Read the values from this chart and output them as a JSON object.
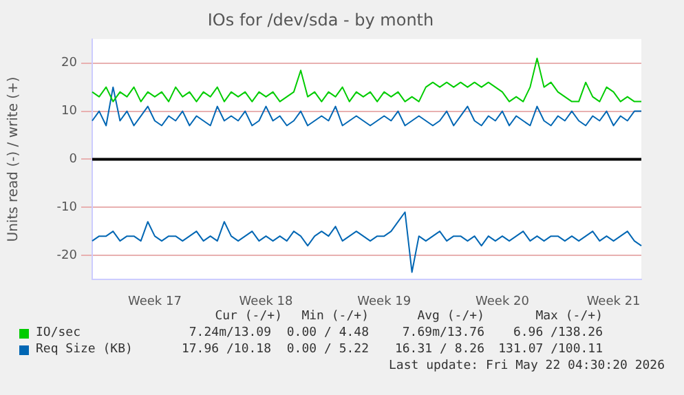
{
  "chart_data": {
    "type": "line",
    "title": "IOs for /dev/sda - by month",
    "ylabel": "Units read (-) / write (+)",
    "categories": [
      null,
      null,
      null,
      null,
      null,
      null,
      null,
      null,
      null,
      "Week 17",
      null,
      null,
      null,
      null,
      null,
      null,
      null,
      null,
      null,
      null,
      null,
      null,
      null,
      null,
      null,
      "Week 18",
      null,
      null,
      null,
      null,
      null,
      null,
      null,
      null,
      null,
      null,
      null,
      null,
      null,
      null,
      null,
      null,
      "Week 19",
      null,
      null,
      null,
      null,
      null,
      null,
      null,
      null,
      null,
      null,
      null,
      null,
      null,
      null,
      null,
      null,
      "Week 20",
      null,
      null,
      null,
      null,
      null,
      null,
      null,
      null,
      null,
      null,
      null,
      null,
      null,
      null,
      null,
      "Week 21",
      null,
      null,
      null,
      null
    ],
    "series": [
      {
        "name": "IO/sec",
        "color": "#00cc00",
        "values": [
          14,
          13,
          15,
          12,
          14,
          13,
          15,
          12,
          14,
          13,
          14,
          12,
          15,
          13,
          14,
          12,
          14,
          13,
          15,
          12,
          14,
          13,
          14,
          12,
          14,
          13,
          14,
          12,
          13,
          14,
          18.5,
          13,
          14,
          12,
          14,
          13,
          15,
          12,
          14,
          13,
          14,
          12,
          14,
          13,
          14,
          12,
          13,
          12,
          15,
          16,
          15,
          16,
          15,
          16,
          15,
          16,
          15,
          16,
          15,
          14,
          12,
          13,
          12,
          15,
          21,
          15,
          16,
          14,
          13,
          12,
          12,
          16,
          13,
          12,
          15,
          14,
          12,
          13,
          12,
          12
        ]
      },
      {
        "name": "Req Size (KB)",
        "color": "#0066b3",
        "values": [
          8,
          10,
          7,
          15,
          8,
          10,
          7,
          9,
          11,
          8,
          7,
          9,
          8,
          10,
          7,
          9,
          8,
          7,
          11,
          8,
          9,
          8,
          10,
          7,
          8,
          11,
          8,
          9,
          7,
          8,
          10,
          7,
          8,
          9,
          8,
          11,
          7,
          8,
          9,
          8,
          7,
          8,
          9,
          8,
          10,
          7,
          8,
          9,
          8,
          7,
          8,
          10,
          7,
          9,
          11,
          8,
          7,
          9,
          8,
          10,
          7,
          9,
          8,
          7,
          11,
          8,
          7,
          9,
          8,
          10,
          8,
          7,
          9,
          8,
          10,
          7,
          9,
          8,
          10,
          10
        ]
      },
      {
        "color": "#0066b3",
        "values": [
          -17,
          -16,
          -16,
          -15,
          -17,
          -16,
          -16,
          -17,
          -13,
          -16,
          -17,
          -16,
          -16,
          -17,
          -16,
          -15,
          -17,
          -16,
          -17,
          -13,
          -16,
          -17,
          -16,
          -15,
          -17,
          -16,
          -17,
          -16,
          -17,
          -15,
          -16,
          -18,
          -16,
          -15,
          -16,
          -14,
          -17,
          -16,
          -15,
          -16,
          -17,
          -16,
          -16,
          -15,
          -13,
          -11,
          -23.5,
          -16,
          -17,
          -16,
          -15,
          -17,
          -16,
          -16,
          -17,
          -16,
          -18,
          -16,
          -17,
          -16,
          -17,
          -16,
          -15,
          -17,
          -16,
          -17,
          -16,
          -16,
          -17,
          -16,
          -17,
          -16,
          -15,
          -17,
          -16,
          -17,
          -16,
          -15,
          -17,
          -18
        ]
      }
    ],
    "ylim": [
      -25,
      25
    ],
    "yticks": [
      -20,
      -10,
      0,
      10,
      20
    ],
    "grid": "y",
    "legend": "bottom",
    "marker": "none",
    "line_style": "solid",
    "ref_lines": [
      {
        "axis": "y",
        "value": 0,
        "color": "#000000"
      }
    ],
    "annotations": [
      "Cur (-/+)",
      "Min (-/+)",
      "Avg (-/+)",
      "Max (-/+)",
      "7.24m/13.09",
      "0.00 / 4.48",
      "7.69m/13.76",
      "6.96 /138.26",
      "17.96 /10.18",
      "0.00 / 5.22",
      "16.31 / 8.26",
      "131.07 /100.11",
      "Last update: Fri May 22 04:30:20 2026"
    ]
  }
}
